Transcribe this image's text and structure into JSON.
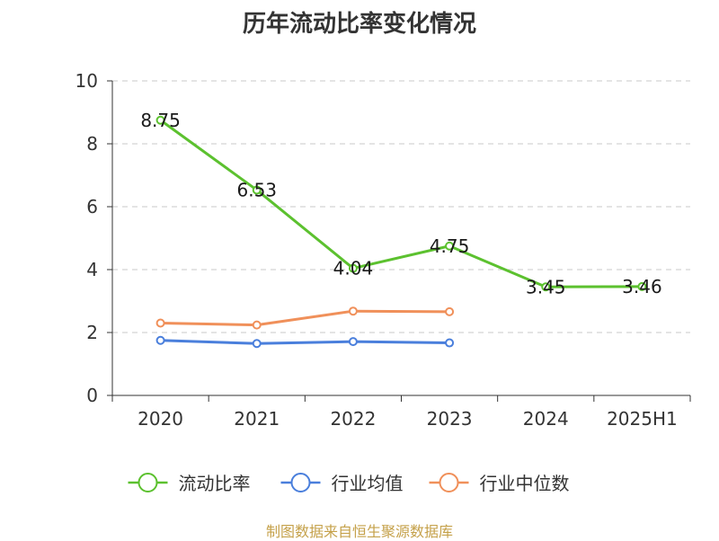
{
  "title": "历年流动比率变化情况",
  "source": "制图数据来自恒生聚源数据库",
  "chart_data": {
    "type": "line",
    "categories": [
      "2020",
      "2021",
      "2022",
      "2023",
      "2024",
      "2025H1"
    ],
    "ylim": [
      0,
      10
    ],
    "yticks": [
      0,
      2,
      4,
      6,
      8,
      10
    ],
    "grid": true,
    "legend_position": "bottom",
    "series": [
      {
        "name": "流动比率",
        "color": "#5cc12f",
        "values": [
          8.75,
          6.53,
          4.04,
          4.75,
          3.45,
          3.46
        ],
        "data_labels": [
          "8.75",
          "6.53",
          "4.04",
          "4.75",
          "3.45",
          "3.46"
        ]
      },
      {
        "name": "行业均值",
        "color": "#4a7fdc",
        "values": [
          1.75,
          1.65,
          1.71,
          1.67,
          null,
          null
        ],
        "data_labels": []
      },
      {
        "name": "行业中位数",
        "color": "#f0905a",
        "values": [
          2.3,
          2.24,
          2.68,
          2.66,
          null,
          null
        ],
        "data_labels": []
      }
    ]
  }
}
